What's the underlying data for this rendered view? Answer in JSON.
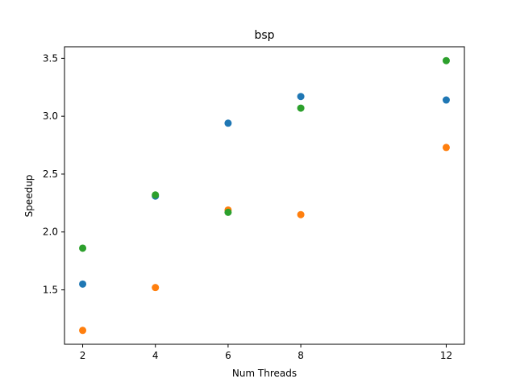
{
  "chart_data": {
    "type": "scatter",
    "title": "bsp",
    "xlabel": "Num Threads",
    "ylabel": "Speedup",
    "xlim": [
      1.5,
      12.5
    ],
    "ylim": [
      1.03,
      3.6
    ],
    "xticks": [
      2,
      4,
      6,
      8,
      12
    ],
    "yticks": [
      1.5,
      2.0,
      2.5,
      3.0,
      3.5
    ],
    "ytick_labels": [
      "1.5",
      "2.0",
      "2.5",
      "3.0",
      "3.5"
    ],
    "grid": false,
    "legend": null,
    "series": [
      {
        "color": "#1f77b4",
        "x": [
          2,
          4,
          6,
          8,
          12
        ],
        "y": [
          1.55,
          2.31,
          2.94,
          3.17,
          3.14
        ]
      },
      {
        "color": "#ff7f0e",
        "x": [
          2,
          4,
          6,
          8,
          12
        ],
        "y": [
          1.15,
          1.52,
          2.19,
          2.15,
          2.73
        ]
      },
      {
        "color": "#2ca02c",
        "x": [
          2,
          4,
          6,
          8,
          12
        ],
        "y": [
          1.86,
          2.32,
          2.17,
          3.07,
          3.48
        ]
      }
    ]
  }
}
